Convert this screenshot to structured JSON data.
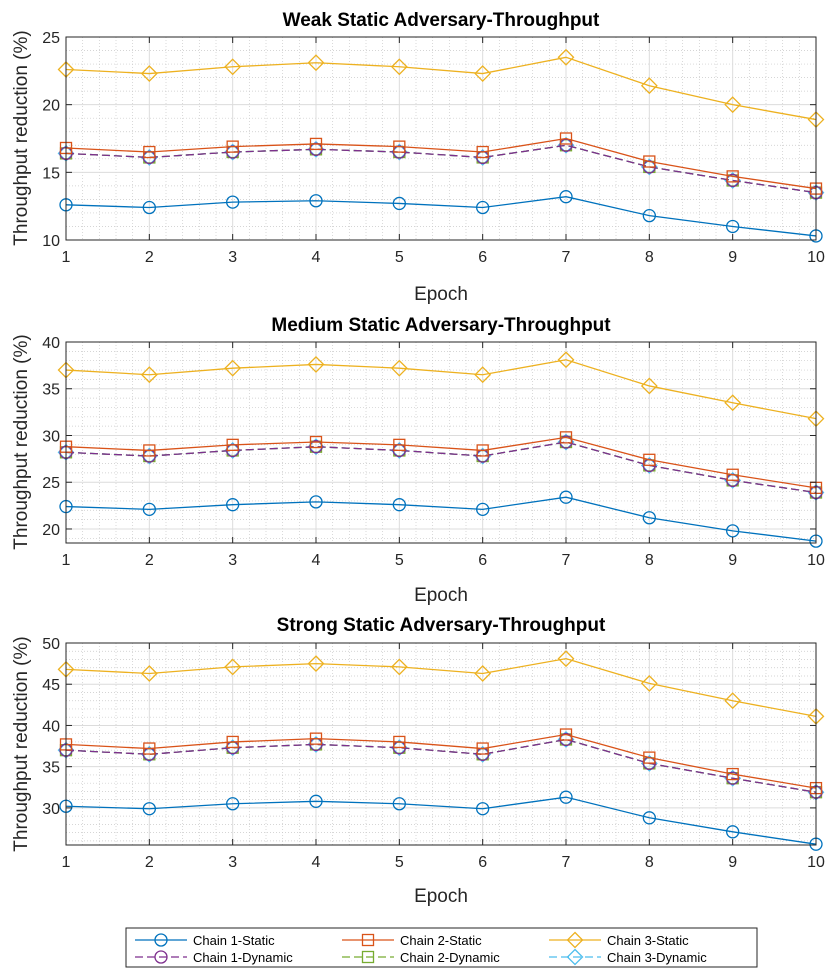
{
  "legend": {
    "entries": [
      {
        "id": "c1s",
        "label": "Chain 1-Static",
        "color": "#0072BD",
        "marker": "circle",
        "dashed": false
      },
      {
        "id": "c2s",
        "label": "Chain 2-Static",
        "color": "#D95319",
        "marker": "square",
        "dashed": false
      },
      {
        "id": "c3s",
        "label": "Chain 3-Static",
        "color": "#EDB120",
        "marker": "diamond",
        "dashed": false
      },
      {
        "id": "c1d",
        "label": "Chain 1-Dynamic",
        "color": "#7E2F8E",
        "marker": "circle",
        "dashed": true
      },
      {
        "id": "c2d",
        "label": "Chain 2-Dynamic",
        "color": "#77AC30",
        "marker": "square",
        "dashed": true
      },
      {
        "id": "c3d",
        "label": "Chain 3-Dynamic",
        "color": "#4DBEEE",
        "marker": "diamond",
        "dashed": true
      }
    ]
  },
  "chart_data": [
    {
      "type": "line",
      "title": "Weak Static Adversary-Throughput",
      "xlabel": "Epoch",
      "ylabel": "Throughput reduction (%)",
      "x": [
        1,
        2,
        3,
        4,
        5,
        6,
        7,
        8,
        9,
        10
      ],
      "xlim": [
        1,
        10
      ],
      "ylim": [
        10,
        25
      ],
      "yticks": [
        10,
        15,
        20,
        25
      ],
      "grid": true,
      "series": [
        {
          "id": "c1s",
          "name": "Chain 1-Static",
          "values": [
            12.6,
            12.4,
            12.8,
            12.9,
            12.7,
            12.4,
            13.2,
            11.8,
            11.0,
            10.3
          ]
        },
        {
          "id": "c2s",
          "name": "Chain 2-Static",
          "values": [
            16.8,
            16.5,
            16.9,
            17.1,
            16.9,
            16.5,
            17.5,
            15.8,
            14.7,
            13.8
          ]
        },
        {
          "id": "c3s",
          "name": "Chain 3-Static",
          "values": [
            22.6,
            22.3,
            22.8,
            23.1,
            22.8,
            22.3,
            23.5,
            21.4,
            20.0,
            18.9
          ]
        },
        {
          "id": "c1d",
          "name": "Chain 1-Dynamic",
          "values": [
            16.4,
            16.1,
            16.5,
            16.7,
            16.5,
            16.1,
            17.0,
            15.4,
            14.4,
            13.5
          ]
        },
        {
          "id": "c2d",
          "name": "Chain 2-Dynamic",
          "values": [
            16.4,
            16.1,
            16.5,
            16.7,
            16.5,
            16.1,
            17.0,
            15.4,
            14.4,
            13.5
          ]
        },
        {
          "id": "c3d",
          "name": "Chain 3-Dynamic",
          "values": [
            16.4,
            16.1,
            16.5,
            16.7,
            16.5,
            16.1,
            17.0,
            15.4,
            14.4,
            13.5
          ]
        }
      ]
    },
    {
      "type": "line",
      "title": "Medium Static Adversary-Throughput",
      "xlabel": "Epoch",
      "ylabel": "Throughput reduction (%)",
      "x": [
        1,
        2,
        3,
        4,
        5,
        6,
        7,
        8,
        9,
        10
      ],
      "xlim": [
        1,
        10
      ],
      "ylim": [
        18.5,
        40
      ],
      "yticks": [
        20,
        25,
        30,
        35,
        40
      ],
      "grid": true,
      "series": [
        {
          "id": "c1s",
          "name": "Chain 1-Static",
          "values": [
            22.4,
            22.1,
            22.6,
            22.9,
            22.6,
            22.1,
            23.4,
            21.2,
            19.8,
            18.7
          ]
        },
        {
          "id": "c2s",
          "name": "Chain 2-Static",
          "values": [
            28.8,
            28.4,
            29.0,
            29.3,
            29.0,
            28.4,
            29.8,
            27.4,
            25.8,
            24.4
          ]
        },
        {
          "id": "c3s",
          "name": "Chain 3-Static",
          "values": [
            37.0,
            36.5,
            37.2,
            37.6,
            37.2,
            36.5,
            38.1,
            35.3,
            33.5,
            31.8
          ]
        },
        {
          "id": "c1d",
          "name": "Chain 1-Dynamic",
          "values": [
            28.2,
            27.8,
            28.4,
            28.8,
            28.4,
            27.8,
            29.3,
            26.8,
            25.2,
            23.9
          ]
        },
        {
          "id": "c2d",
          "name": "Chain 2-Dynamic",
          "values": [
            28.2,
            27.8,
            28.4,
            28.8,
            28.4,
            27.8,
            29.3,
            26.8,
            25.2,
            23.9
          ]
        },
        {
          "id": "c3d",
          "name": "Chain 3-Dynamic",
          "values": [
            28.2,
            27.8,
            28.4,
            28.8,
            28.4,
            27.8,
            29.3,
            26.8,
            25.2,
            23.9
          ]
        }
      ]
    },
    {
      "type": "line",
      "title": "Strong Static Adversary-Throughput",
      "xlabel": "Epoch",
      "ylabel": "Throughput reduction (%)",
      "x": [
        1,
        2,
        3,
        4,
        5,
        6,
        7,
        8,
        9,
        10
      ],
      "xlim": [
        1,
        10
      ],
      "ylim": [
        25.5,
        50
      ],
      "yticks": [
        30,
        35,
        40,
        45,
        50
      ],
      "grid": true,
      "series": [
        {
          "id": "c1s",
          "name": "Chain 1-Static",
          "values": [
            30.2,
            29.9,
            30.5,
            30.8,
            30.5,
            29.9,
            31.3,
            28.8,
            27.1,
            25.6
          ]
        },
        {
          "id": "c2s",
          "name": "Chain 2-Static",
          "values": [
            37.7,
            37.2,
            38.0,
            38.4,
            38.0,
            37.2,
            38.9,
            36.1,
            34.1,
            32.4
          ]
        },
        {
          "id": "c3s",
          "name": "Chain 3-Static",
          "values": [
            46.8,
            46.3,
            47.1,
            47.5,
            47.1,
            46.3,
            48.1,
            45.1,
            43.0,
            41.1
          ]
        },
        {
          "id": "c1d",
          "name": "Chain 1-Dynamic",
          "values": [
            37.0,
            36.5,
            37.3,
            37.7,
            37.3,
            36.5,
            38.3,
            35.4,
            33.6,
            31.9
          ]
        },
        {
          "id": "c2d",
          "name": "Chain 2-Dynamic",
          "values": [
            37.0,
            36.5,
            37.3,
            37.7,
            37.3,
            36.5,
            38.3,
            35.4,
            33.6,
            31.9
          ]
        },
        {
          "id": "c3d",
          "name": "Chain 3-Dynamic",
          "values": [
            37.0,
            36.5,
            37.3,
            37.7,
            37.3,
            36.5,
            38.3,
            35.4,
            33.6,
            31.9
          ]
        }
      ]
    }
  ]
}
